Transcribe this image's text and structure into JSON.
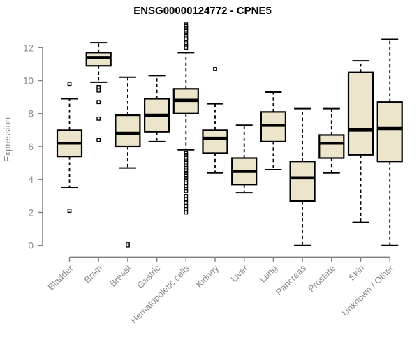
{
  "chart_data": {
    "type": "boxplot",
    "title": "ENSG00000124772 - CPNE5",
    "ylabel": "Expression",
    "xlabel": "",
    "ylim": [
      0,
      13.5
    ],
    "yticks": [
      0,
      2,
      4,
      6,
      8,
      10,
      12
    ],
    "grid": false,
    "legend": "none",
    "categories": [
      "Bladder",
      "Brain",
      "Breast",
      "Gastric",
      "Hematopoietic cells",
      "Kidney",
      "Liver",
      "Lung",
      "Pancreas",
      "Prostate",
      "Skin",
      "Unknown / Other"
    ],
    "boxes": [
      {
        "category": "Bladder",
        "whisker_low": 3.5,
        "q1": 5.4,
        "median": 6.2,
        "q3": 7.0,
        "whisker_high": 8.9,
        "outliers": [
          9.8,
          2.1
        ]
      },
      {
        "category": "Brain",
        "whisker_low": 9.9,
        "q1": 10.9,
        "median": 11.4,
        "q3": 11.7,
        "whisker_high": 12.3,
        "outliers": [
          9.6,
          9.4,
          8.7,
          7.7,
          6.4
        ]
      },
      {
        "category": "Breast",
        "whisker_low": 4.7,
        "q1": 6.0,
        "median": 6.8,
        "q3": 7.9,
        "whisker_high": 10.2,
        "outliers": [
          0.1,
          0.0
        ]
      },
      {
        "category": "Gastric",
        "whisker_low": 6.3,
        "q1": 6.9,
        "median": 7.9,
        "q3": 8.9,
        "whisker_high": 10.3,
        "outliers": []
      },
      {
        "category": "Hematopoietic cells",
        "whisker_low": 5.8,
        "q1": 8.0,
        "median": 8.8,
        "q3": 9.5,
        "whisker_high": 11.7,
        "outliers": [
          13.4,
          13.3,
          13.2,
          13.1,
          13.0,
          12.9,
          12.8,
          12.7,
          12.6,
          12.5,
          12.3,
          12.2,
          12.1,
          12.0,
          5.6,
          5.5,
          5.4,
          5.3,
          5.2,
          5.1,
          5.0,
          4.9,
          4.8,
          4.7,
          4.6,
          4.5,
          4.4,
          4.3,
          4.2,
          4.1,
          4.0,
          3.9,
          3.8,
          3.6,
          3.4,
          3.3,
          3.0,
          2.8,
          2.6,
          2.4,
          2.2,
          2.0
        ]
      },
      {
        "category": "Kidney",
        "whisker_low": 4.4,
        "q1": 5.6,
        "median": 6.5,
        "q3": 7.0,
        "whisker_high": 8.6,
        "outliers": [
          10.7
        ]
      },
      {
        "category": "Liver",
        "whisker_low": 3.2,
        "q1": 3.7,
        "median": 4.5,
        "q3": 5.3,
        "whisker_high": 7.3,
        "outliers": []
      },
      {
        "category": "Lung",
        "whisker_low": 4.6,
        "q1": 6.3,
        "median": 7.3,
        "q3": 8.1,
        "whisker_high": 9.3,
        "outliers": []
      },
      {
        "category": "Pancreas",
        "whisker_low": 0.0,
        "q1": 2.7,
        "median": 4.1,
        "q3": 5.1,
        "whisker_high": 8.3,
        "outliers": []
      },
      {
        "category": "Prostate",
        "whisker_low": 4.4,
        "q1": 5.3,
        "median": 6.2,
        "q3": 6.7,
        "whisker_high": 8.3,
        "outliers": []
      },
      {
        "category": "Skin",
        "whisker_low": 1.4,
        "q1": 5.5,
        "median": 7.0,
        "q3": 10.5,
        "whisker_high": 11.2,
        "outliers": []
      },
      {
        "category": "Unknown / Other",
        "whisker_low": 0.0,
        "q1": 5.1,
        "median": 7.1,
        "q3": 8.7,
        "whisker_high": 12.5,
        "outliers": []
      }
    ],
    "colors": {
      "box_fill": "#ECE5CB",
      "box_stroke": "#000000",
      "axis_line": "#7d7d7d",
      "tick_label": "#8b8b8b",
      "title": "#000000",
      "background": "#ffffff"
    }
  }
}
